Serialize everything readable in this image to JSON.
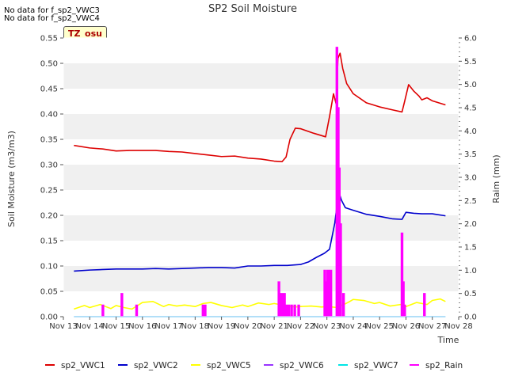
{
  "messages": [
    "No data for f_sp2_VWC3",
    "No data for f_sp2_VWC4"
  ],
  "site_badge": "TZ_osu",
  "chart_data": {
    "type": "line",
    "title": "SP2 Soil Moisture",
    "xlabel": "Time",
    "ylabel": "Soil Moisture (m3/m3)",
    "y2label": "Raim (mm)",
    "xlim": [
      13,
      28
    ],
    "ylim": [
      0,
      0.55
    ],
    "y2lim": [
      0,
      6.0
    ],
    "x_ticks": [
      13,
      14,
      15,
      16,
      17,
      18,
      19,
      20,
      21,
      22,
      23,
      24,
      25,
      26,
      27,
      28
    ],
    "x_tick_labels": [
      "Nov 13",
      "Nov 14",
      "Nov 15",
      "Nov 16",
      "Nov 17",
      "Nov 18",
      "Nov 19",
      "Nov 20",
      "Nov 21",
      "Nov 22",
      "Nov 23",
      "Nov 24",
      "Nov 25",
      "Nov 26",
      "Nov 27",
      "Nov 28"
    ],
    "y_ticks": [
      0.0,
      0.05,
      0.1,
      0.15,
      0.2,
      0.25,
      0.3,
      0.35,
      0.4,
      0.45,
      0.5,
      0.55
    ],
    "y_tick_labels": [
      "0.00",
      "0.05",
      "0.10",
      "0.15",
      "0.20",
      "0.25",
      "0.30",
      "0.35",
      "0.40",
      "0.45",
      "0.50",
      "0.55"
    ],
    "y2_ticks": [
      0,
      0.5,
      1.0,
      1.5,
      2.0,
      2.5,
      3.0,
      3.5,
      4.0,
      4.5,
      5.0,
      5.5,
      6.0
    ],
    "y2_tick_labels": [
      "0.0",
      "0.5",
      "1.0",
      "1.5",
      "2.0",
      "2.5",
      "3.0",
      "3.5",
      "4.0",
      "4.5",
      "5.0",
      "5.5",
      "6.0"
    ],
    "grid": "horizontal bands",
    "legend_position": "bottom",
    "series": [
      {
        "name": "sp2_VWC1",
        "color": "#dd0000",
        "axis": "left",
        "x": [
          13.4,
          14.0,
          14.5,
          15.0,
          15.5,
          16.0,
          16.5,
          17.0,
          17.5,
          18.0,
          18.5,
          19.0,
          19.5,
          20.0,
          20.5,
          21.0,
          21.3,
          21.45,
          21.6,
          21.8,
          22.0,
          22.5,
          22.95,
          23.1,
          23.25,
          23.35,
          23.42,
          23.5,
          23.6,
          23.75,
          24.0,
          24.5,
          25.0,
          25.5,
          25.85,
          25.95,
          26.1,
          26.3,
          26.5,
          26.6,
          26.8,
          27.0,
          27.5
        ],
        "y": [
          0.338,
          0.333,
          0.331,
          0.327,
          0.328,
          0.328,
          0.328,
          0.326,
          0.325,
          0.322,
          0.319,
          0.316,
          0.317,
          0.313,
          0.311,
          0.307,
          0.306,
          0.315,
          0.35,
          0.372,
          0.371,
          0.362,
          0.355,
          0.395,
          0.44,
          0.42,
          0.51,
          0.52,
          0.49,
          0.46,
          0.44,
          0.422,
          0.414,
          0.408,
          0.404,
          0.425,
          0.458,
          0.445,
          0.435,
          0.428,
          0.432,
          0.426,
          0.418
        ]
      },
      {
        "name": "sp2_VWC2",
        "color": "#0000cc",
        "axis": "left",
        "x": [
          13.4,
          14.0,
          14.5,
          15.0,
          15.5,
          16.0,
          16.5,
          17.0,
          17.5,
          18.0,
          18.5,
          19.0,
          19.5,
          20.0,
          20.5,
          21.0,
          21.5,
          22.0,
          22.3,
          22.6,
          22.9,
          23.1,
          23.3,
          23.45,
          23.55,
          23.7,
          24.0,
          24.5,
          25.0,
          25.5,
          25.85,
          26.0,
          26.3,
          26.6,
          27.0,
          27.5
        ],
        "y": [
          0.09,
          0.092,
          0.093,
          0.094,
          0.094,
          0.094,
          0.095,
          0.094,
          0.095,
          0.096,
          0.097,
          0.097,
          0.096,
          0.1,
          0.1,
          0.101,
          0.101,
          0.103,
          0.108,
          0.117,
          0.125,
          0.133,
          0.185,
          0.247,
          0.23,
          0.215,
          0.21,
          0.202,
          0.198,
          0.193,
          0.192,
          0.206,
          0.204,
          0.203,
          0.203,
          0.199
        ]
      },
      {
        "name": "sp2_VWC5",
        "color": "#ffff00",
        "axis": "left",
        "x": [
          13.4,
          13.8,
          14.0,
          14.4,
          14.8,
          15.0,
          15.3,
          15.6,
          16.0,
          16.4,
          16.8,
          17.0,
          17.3,
          17.6,
          18.0,
          18.3,
          18.6,
          19.0,
          19.4,
          19.8,
          20.0,
          20.4,
          20.8,
          21.0,
          21.4,
          21.8,
          22.0,
          22.4,
          22.8,
          23.0,
          23.4,
          23.8,
          24.0,
          24.4,
          24.8,
          25.0,
          25.4,
          25.8,
          26.0,
          26.4,
          26.8,
          27.0,
          27.3,
          27.5
        ],
        "y": [
          0.015,
          0.022,
          0.018,
          0.024,
          0.016,
          0.022,
          0.018,
          0.015,
          0.028,
          0.03,
          0.02,
          0.024,
          0.021,
          0.023,
          0.02,
          0.026,
          0.028,
          0.022,
          0.018,
          0.023,
          0.02,
          0.027,
          0.024,
          0.026,
          0.022,
          0.019,
          0.02,
          0.021,
          0.019,
          0.02,
          0.018,
          0.028,
          0.034,
          0.032,
          0.026,
          0.028,
          0.021,
          0.024,
          0.02,
          0.028,
          0.024,
          0.032,
          0.035,
          0.03
        ]
      },
      {
        "name": "sp2_VWC6",
        "color": "#9933ff",
        "axis": "left",
        "x": [
          13.4,
          27.5
        ],
        "y": [
          0.0,
          0.0
        ]
      },
      {
        "name": "sp2_VWC7",
        "color": "#00e5e5",
        "axis": "left",
        "x": [
          13.4,
          27.5
        ],
        "y": [
          0.0,
          0.0
        ]
      },
      {
        "name": "sp2_Rain",
        "color": "#ff00ff",
        "axis": "right",
        "type": "bars",
        "x": [
          14.5,
          15.22,
          15.78,
          18.3,
          18.38,
          21.18,
          21.26,
          21.33,
          21.39,
          21.45,
          21.55,
          21.66,
          21.78,
          21.93,
          22.92,
          22.98,
          23.03,
          23.1,
          23.15,
          23.38,
          23.43,
          23.47,
          23.52,
          23.63,
          25.85,
          25.9,
          25.95,
          26.7
        ],
        "y": [
          0.25,
          0.5,
          0.25,
          0.25,
          0.25,
          0.75,
          0.5,
          0.5,
          0.5,
          0.25,
          0.25,
          0.25,
          0.25,
          0.25,
          1.0,
          0.75,
          1.0,
          1.0,
          1.0,
          5.8,
          4.5,
          3.2,
          2.0,
          0.5,
          1.8,
          0.75,
          0.25,
          0.5
        ]
      }
    ]
  }
}
